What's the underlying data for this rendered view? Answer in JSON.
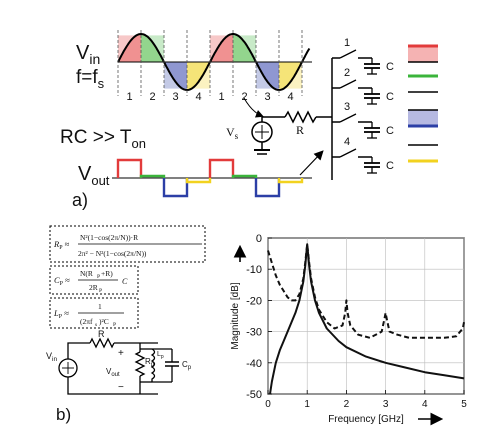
{
  "panel_a": {
    "label": "a)",
    "vin_label": "V",
    "vin_sub": "in",
    "freq_label": "f=f",
    "freq_sub": "s",
    "phase_numbers": [
      "1",
      "2",
      "3",
      "4",
      "1",
      "2",
      "3",
      "4"
    ],
    "rc_label": "RC >> T",
    "rc_sub": "on",
    "vout_label": "V",
    "vout_sub": "out",
    "vs_label": "V",
    "vs_sub": "s",
    "r_label": "R",
    "switch_numbers": [
      "1",
      "2",
      "3",
      "4"
    ],
    "cap_label": "C",
    "phase_colors": [
      "#e23b3b",
      "#3bb43b",
      "#2c3fa6",
      "#f2d21f"
    ],
    "phase_fill_colors": [
      "#f5b3b3",
      "#b6e2ad",
      "#b6b9e2",
      "#f7ec9a"
    ]
  },
  "panel_b": {
    "label": "b)",
    "formula_rp": "R_P ≈ N²(1−cos(2π/N))·R / (2π² − N²(1−cos(2π/N)))",
    "formula_cp": "C_P ≈ N(R_P+R)C / 2R_P",
    "formula_lp": "L_P ≈ 1 / (2πf_s)²C_P",
    "circuit": {
      "r_label": "R",
      "vin_label": "V",
      "vin_sub": "in",
      "vout_label": "V",
      "vout_sub": "out",
      "rp_label": "R",
      "rp_sub": "p",
      "lp_label": "L",
      "lp_sub": "p",
      "cp_label": "C",
      "cp_sub": "p",
      "plus": "+",
      "minus": "−"
    }
  },
  "chart_data": {
    "type": "line",
    "xlabel": "Frequency [GHz]",
    "ylabel": "Magnitude [dB]",
    "xlim": [
      0,
      5
    ],
    "ylim": [
      -50,
      0
    ],
    "xticks": [
      "0",
      "1",
      "2",
      "3",
      "4",
      "5"
    ],
    "yticks": [
      "0",
      "-10",
      "-20",
      "-30",
      "-40",
      "-50"
    ],
    "grid": true,
    "series": [
      {
        "style": "solid",
        "x": [
          0.05,
          0.1,
          0.2,
          0.3,
          0.4,
          0.5,
          0.6,
          0.7,
          0.8,
          0.9,
          0.95,
          1.0,
          1.05,
          1.1,
          1.2,
          1.3,
          1.5,
          1.8,
          2.0,
          2.5,
          3.0,
          3.5,
          4.0,
          4.5,
          5.0
        ],
        "y": [
          -50,
          -46,
          -40,
          -36,
          -33,
          -30,
          -27,
          -24,
          -20,
          -14,
          -9,
          -2,
          -9,
          -14,
          -20,
          -24,
          -29,
          -33,
          -35,
          -38,
          -40,
          -41.5,
          -43,
          -44,
          -45
        ]
      },
      {
        "style": "dashed",
        "x": [
          0.0,
          0.1,
          0.2,
          0.3,
          0.4,
          0.5,
          0.6,
          0.7,
          0.8,
          0.9,
          0.95,
          1.0,
          1.05,
          1.1,
          1.2,
          1.3,
          1.5,
          1.7,
          1.9,
          1.97,
          2.0,
          2.03,
          2.1,
          2.3,
          2.6,
          2.9,
          2.97,
          3.0,
          3.03,
          3.1,
          3.3,
          3.6,
          3.9,
          4.2,
          4.5,
          4.8,
          4.97,
          5.0
        ],
        "y": [
          -4,
          -8,
          -12,
          -15,
          -17,
          -19,
          -20,
          -20,
          -18,
          -13,
          -8,
          -2,
          -8,
          -13,
          -19,
          -23,
          -27,
          -29,
          -28,
          -24,
          -20,
          -24,
          -28,
          -31,
          -32,
          -30,
          -26,
          -24,
          -26,
          -30,
          -31,
          -32,
          -32,
          -32,
          -32,
          -31.5,
          -29,
          -27
        ]
      }
    ]
  }
}
